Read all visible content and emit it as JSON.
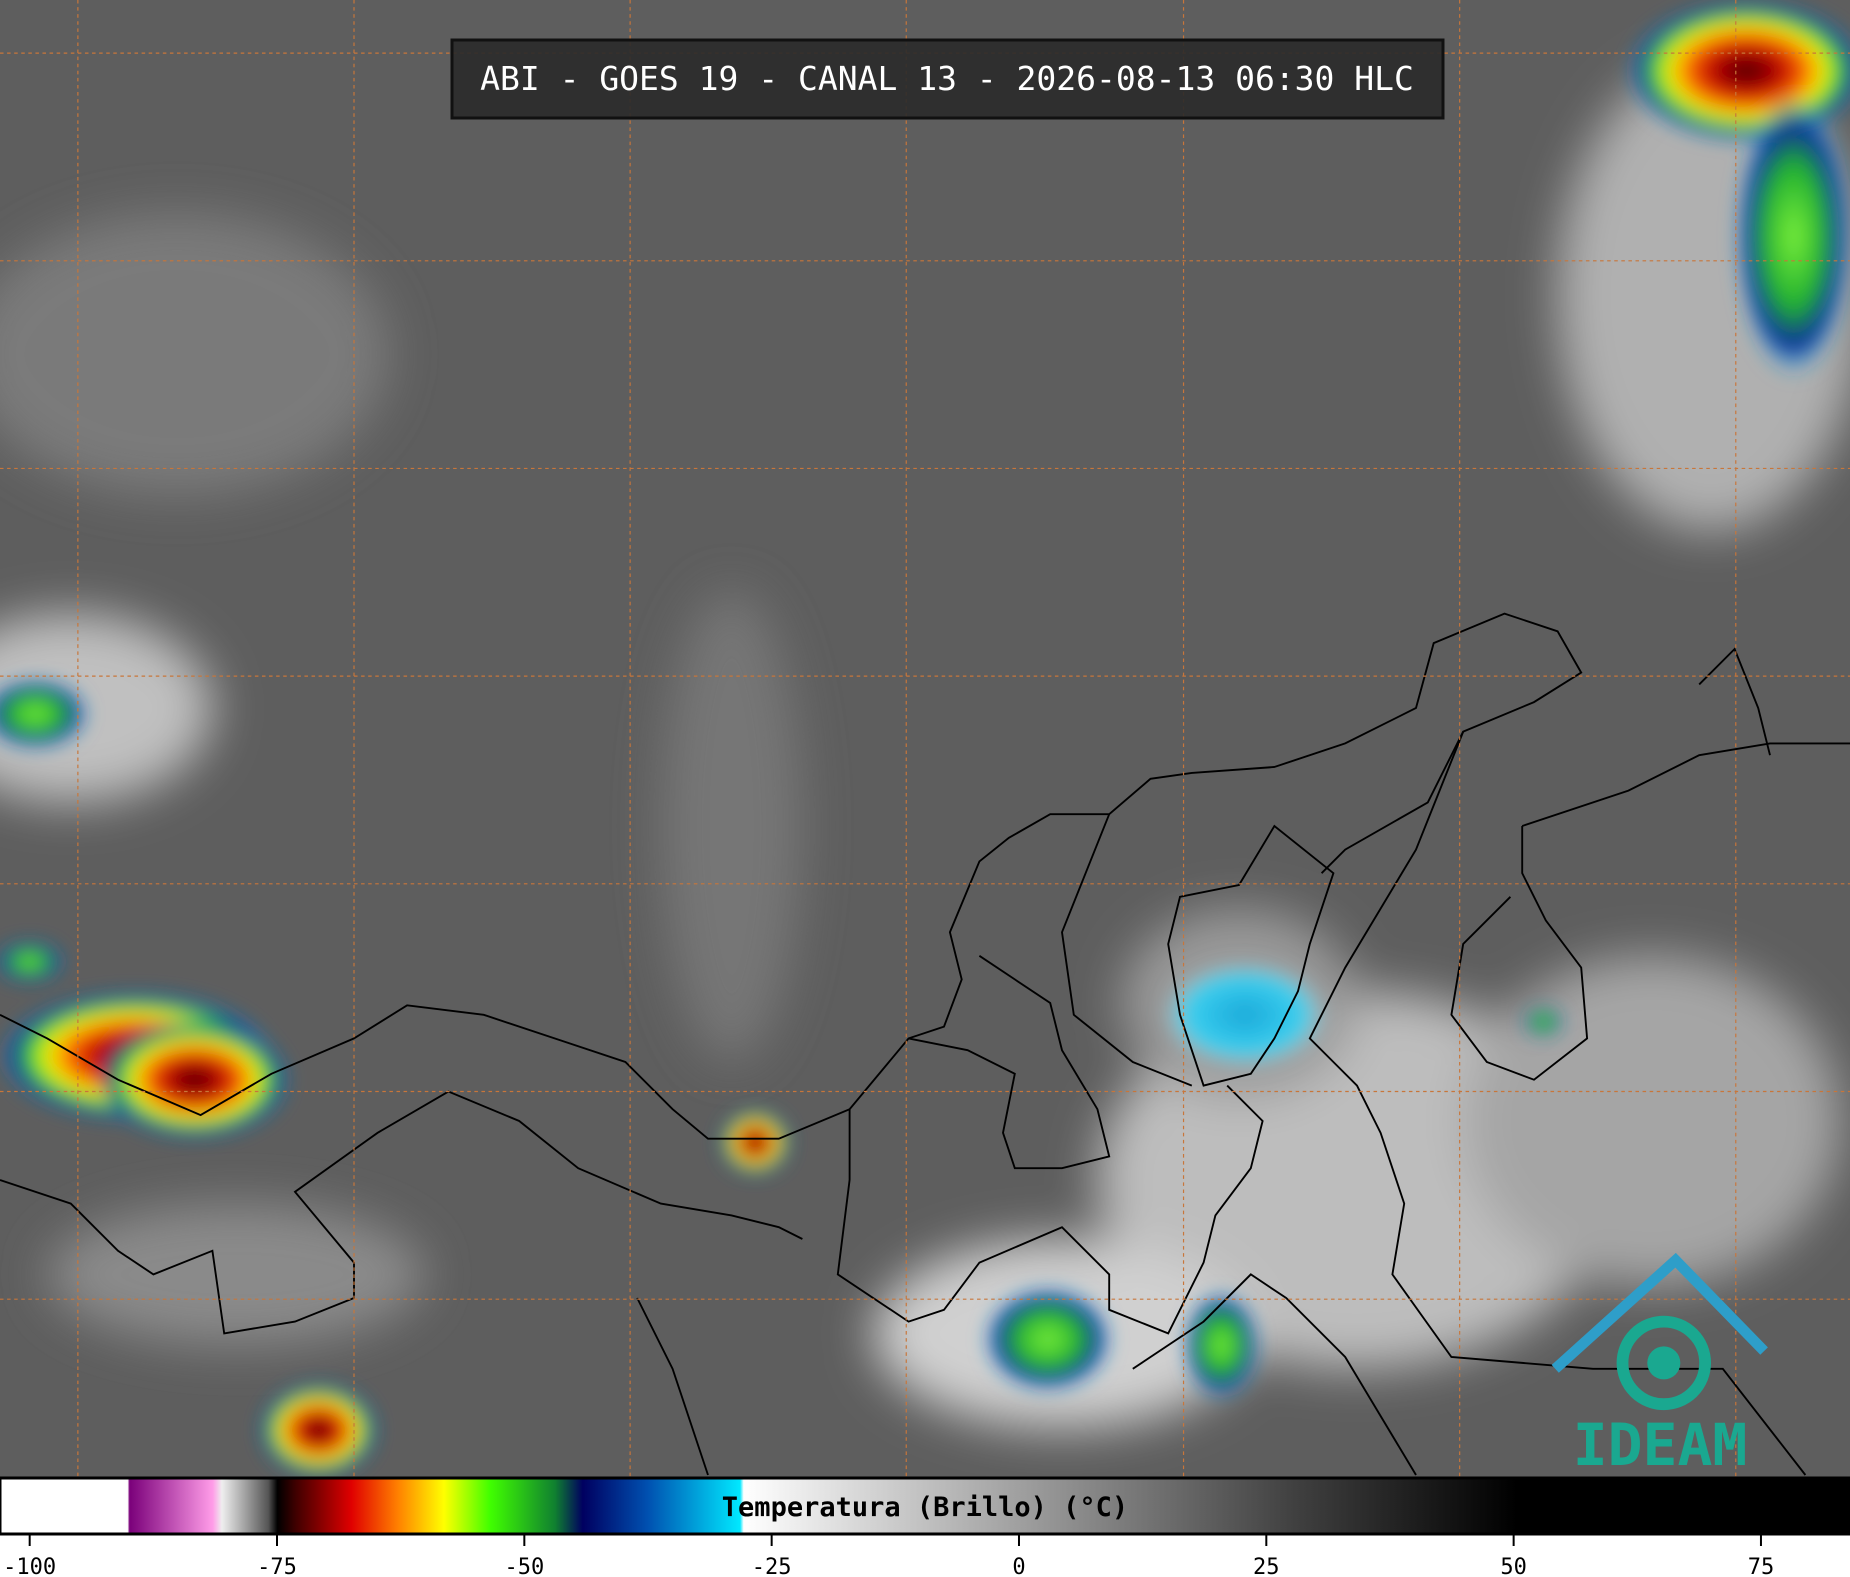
{
  "title": "ABI - GOES 19 - CANAL 13 - 2026-08-13 06:30 HLC",
  "colorbar": {
    "label": "Temperatura (Brillo) (°C)",
    "lim": [
      -103,
      84
    ],
    "ticks": [
      -100,
      -75,
      -50,
      -25,
      0,
      25,
      50,
      75
    ]
  },
  "logo": "IDEAM"
}
